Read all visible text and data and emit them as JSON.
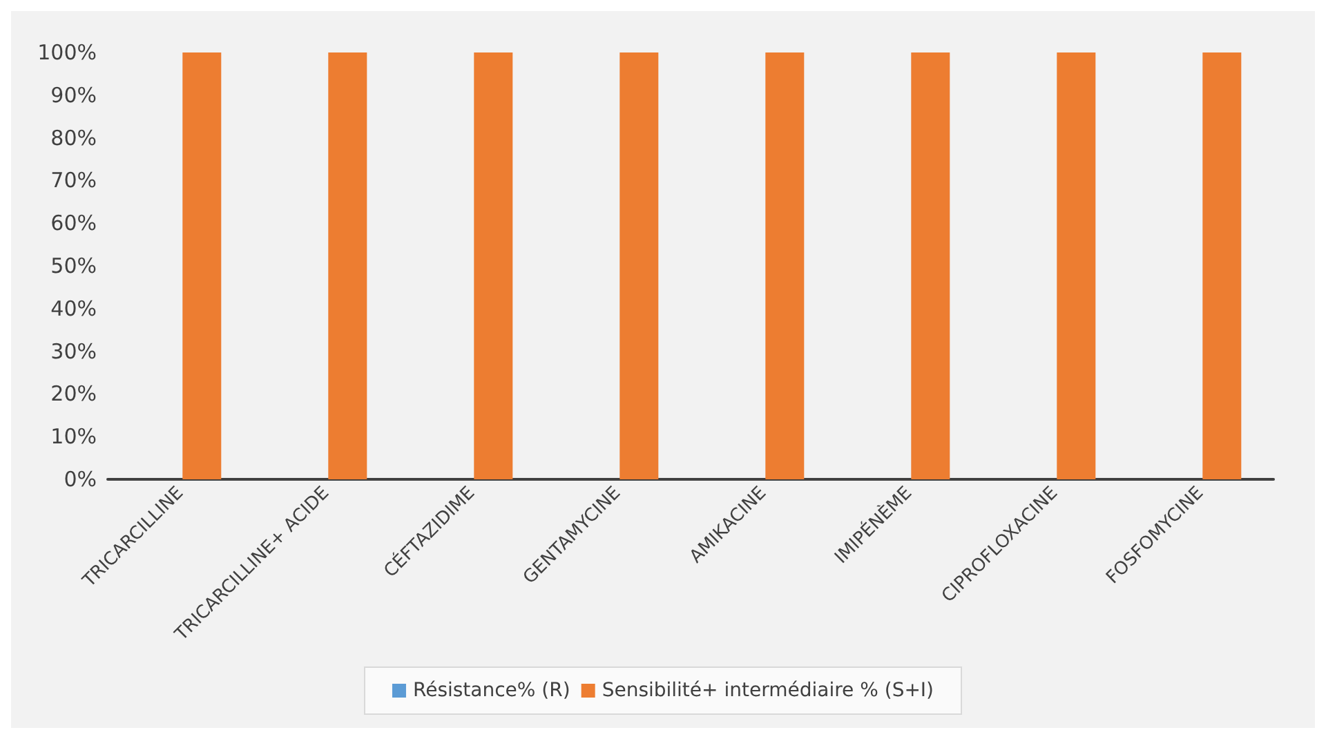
{
  "chart_data": {
    "type": "bar",
    "categories": [
      "TRICARCILLINE",
      "TRICARCILLINE+ ACIDE",
      "CÉFTAZIDIME",
      "GENTAMYCINE",
      "AMIKACINE",
      "IMIPÉNÈME",
      "CIPROFLOXACINE",
      "FOSFOMYCINE"
    ],
    "series": [
      {
        "name": "Résistance% (R)",
        "color": "#5b9bd5",
        "values": [
          0,
          0,
          0,
          0,
          0,
          0,
          0,
          0
        ]
      },
      {
        "name": "Sensibilité+ intermédiaire % (S+I)",
        "color": "#ed7d31",
        "values": [
          100,
          100,
          100,
          100,
          100,
          100,
          100,
          100
        ]
      }
    ],
    "ylim": [
      0,
      100
    ],
    "yticks": [
      {
        "value": 0,
        "label": "0%"
      },
      {
        "value": 10,
        "label": "10%"
      },
      {
        "value": 20,
        "label": "20%"
      },
      {
        "value": 30,
        "label": "30%"
      },
      {
        "value": 40,
        "label": "40%"
      },
      {
        "value": 50,
        "label": "50%"
      },
      {
        "value": 60,
        "label": "60%"
      },
      {
        "value": 70,
        "label": "70%"
      },
      {
        "value": 80,
        "label": "80%"
      },
      {
        "value": 90,
        "label": "90%"
      },
      {
        "value": 100,
        "label": "100%"
      }
    ],
    "grid": false,
    "legend": "bottom"
  }
}
